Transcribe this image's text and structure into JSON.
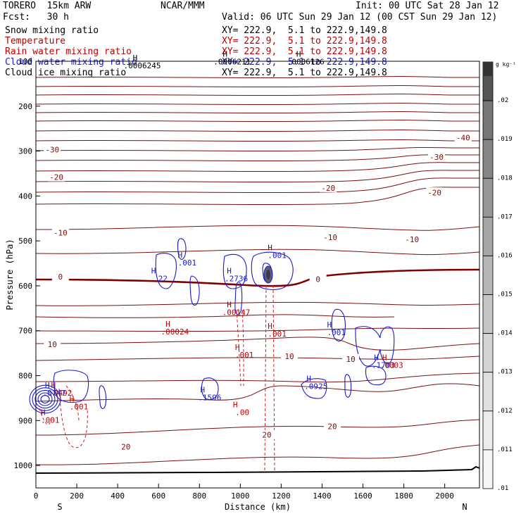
{
  "header": {
    "model": "TORERO  15km ARW",
    "center": "NCAR/MMM",
    "init": "Init: 00 UTC Sat 28 Jan 12",
    "fcst": "Fcst:   30 h",
    "valid": "Valid: 06 UTC Sun 29 Jan 12 (00 CST Sun 29 Jan 12)"
  },
  "fields": [
    {
      "name": "Snow mixing ratio",
      "xy": "XY= 222.9,  5.1 to 222.9,149.8",
      "color": "#000000"
    },
    {
      "name": "Temperature",
      "xy": "XY= 222.9,  5.1 to 222.9,149.8",
      "color": "#c00000"
    },
    {
      "name": "Rain water mixing ratio",
      "xy": "XY= 222.9,  5.1 to 222.9,149.8",
      "color": "#c00000"
    },
    {
      "name": "Cloud water mixing ratio",
      "xy": "XY= 222.9,  5.1 to 222.9,149.8",
      "color": "#1a1ad0"
    },
    {
      "name": "Cloud ice mixing ratio",
      "xy": "XY= 222.9,  5.1 to 222.9,149.8",
      "color": "#000000"
    }
  ],
  "colorbar": {
    "unit": "g kg⁻¹",
    "labels": [
      ".02",
      ".019",
      ".018",
      ".017",
      ".016",
      ".015",
      ".014",
      ".013",
      ".012",
      ".011",
      ".01"
    ],
    "colors": [
      "#555555",
      "#767676",
      "#868686",
      "#969696",
      "#a6a6a6",
      "#b6b6b6",
      "#c6c6c6",
      "#d4d4d4",
      "#e0e0e0",
      "#ececec",
      "#f6f6f6"
    ]
  },
  "chart_data": {
    "type": "contour",
    "xlabel": "Distance (km)",
    "ylabel": "Pressure (hPa)",
    "xlim": [
      0,
      2170
    ],
    "ylim": [
      1050,
      100
    ],
    "x_ticks": [
      "0",
      "200",
      "400",
      "600",
      "800",
      "1000",
      "1200",
      "1400",
      "1600",
      "1800",
      "2000"
    ],
    "x_tick_values": [
      0,
      200,
      400,
      600,
      800,
      1000,
      1200,
      1400,
      1600,
      1800,
      2000
    ],
    "y_ticks": [
      "100",
      "200",
      "300",
      "400",
      "500",
      "600",
      "700",
      "800",
      "900",
      "1000"
    ],
    "y_tick_values": [
      100,
      200,
      300,
      400,
      500,
      600,
      700,
      800,
      900,
      1000
    ],
    "end_labels": {
      "left": "S",
      "right": "N"
    },
    "temperature_labels": [
      {
        "text": "-40",
        "x": 2090,
        "p": 270
      },
      {
        "text": "-30",
        "x": 80,
        "p": 297
      },
      {
        "text": "-30",
        "x": 1960,
        "p": 313
      },
      {
        "text": "-20",
        "x": 100,
        "p": 358
      },
      {
        "text": "-20",
        "x": 1430,
        "p": 382
      },
      {
        "text": "-20",
        "x": 1950,
        "p": 392
      },
      {
        "text": "-10",
        "x": 120,
        "p": 482
      },
      {
        "text": "-10",
        "x": 1440,
        "p": 492
      },
      {
        "text": "-10",
        "x": 1840,
        "p": 497
      },
      {
        "text": "0",
        "x": 120,
        "p": 580
      },
      {
        "text": "0",
        "x": 1380,
        "p": 585
      },
      {
        "text": "10",
        "x": 80,
        "p": 730
      },
      {
        "text": "10",
        "x": 1240,
        "p": 757
      },
      {
        "text": "10",
        "x": 1540,
        "p": 763
      },
      {
        "text": "20",
        "x": 440,
        "p": 958
      },
      {
        "text": "20",
        "x": 1130,
        "p": 932
      },
      {
        "text": "20",
        "x": 1450,
        "p": 913
      }
    ],
    "maxima": [
      {
        "text": ".0006245",
        "x": 520,
        "p": 116,
        "color": "#000000"
      },
      {
        "text": ".0006211",
        "x": 960,
        "p": 107,
        "color": "#000000"
      },
      {
        "text": ".0006126",
        "x": 1320,
        "p": 107,
        "color": "#000000"
      },
      {
        "text": ".22",
        "x": 610,
        "p": 590,
        "color": "#1a1ad0"
      },
      {
        "text": ".001",
        "x": 740,
        "p": 555,
        "color": "#1a1ad0"
      },
      {
        "text": ".2736",
        "x": 980,
        "p": 590,
        "color": "#1a1ad0"
      },
      {
        "text": ".001",
        "x": 1180,
        "p": 538,
        "color": "#1a1ad0"
      },
      {
        "text": ".00147",
        "x": 980,
        "p": 665,
        "color": "#c00000"
      },
      {
        "text": ".00024",
        "x": 680,
        "p": 708,
        "color": "#c00000"
      },
      {
        "text": ".001",
        "x": 1020,
        "p": 760,
        "color": "#c00000"
      },
      {
        "text": ".001",
        "x": 1180,
        "p": 713,
        "color": "#c00000"
      },
      {
        "text": ".001",
        "x": 1470,
        "p": 710,
        "color": "#1a1ad0"
      },
      {
        "text": ".0925",
        "x": 1370,
        "p": 830,
        "color": "#1a1ad0"
      },
      {
        "text": ".1596",
        "x": 850,
        "p": 855,
        "color": "#1a1ad0"
      },
      {
        "text": ".00",
        "x": 1010,
        "p": 888,
        "color": "#c00000"
      },
      {
        "text": ".1703",
        "x": 1700,
        "p": 783,
        "color": "#1a1ad0"
      },
      {
        "text": ".0003",
        "x": 1740,
        "p": 783,
        "color": "#c00000"
      },
      {
        "text": ".0492",
        "x": 120,
        "p": 845,
        "color": "#c00000"
      },
      {
        "text": ".0747",
        "x": 90,
        "p": 845,
        "color": "#1a1ad0"
      },
      {
        "text": ".001",
        "x": 70,
        "p": 905,
        "color": "#c00000"
      },
      {
        "text": ".001",
        "x": 210,
        "p": 875,
        "color": "#c00000"
      }
    ]
  }
}
